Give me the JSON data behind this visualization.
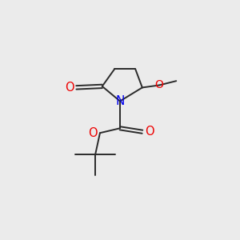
{
  "bg_color": "#ebebeb",
  "bond_color": "#2a2a2a",
  "N_color": "#0000ee",
  "O_color": "#ee0000",
  "line_width": 1.4,
  "font_size": 10.5,
  "fig_size": [
    3.0,
    3.0
  ],
  "dpi": 100,
  "xlim": [
    0,
    10
  ],
  "ylim": [
    0,
    10
  ]
}
